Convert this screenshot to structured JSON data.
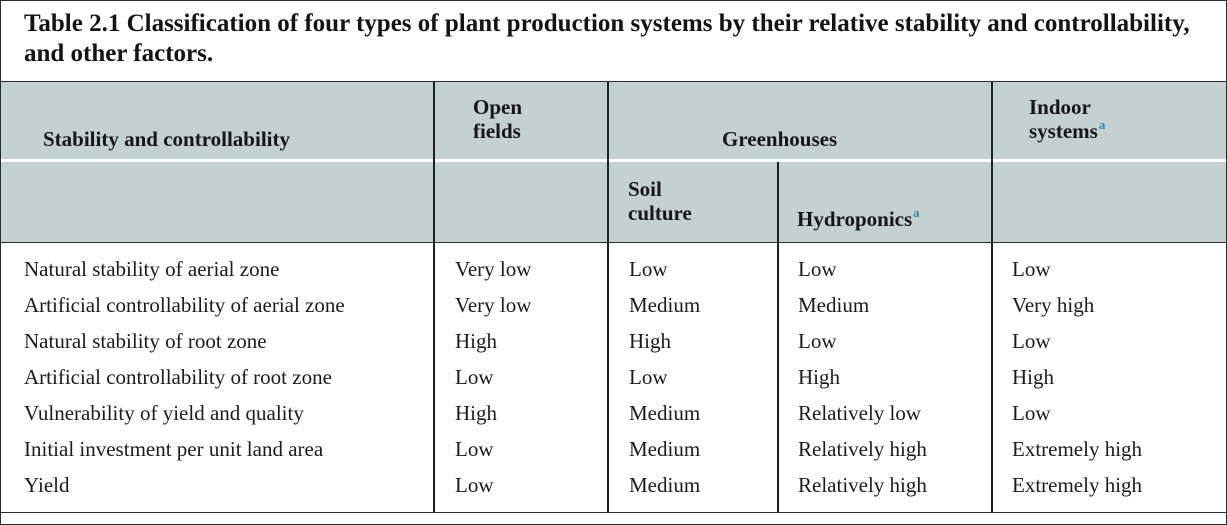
{
  "title": "Table 2.1  Classification of four types of plant production systems by their relative stability and controllability, and other factors.",
  "header": {
    "stability": "Stability and controllability",
    "open_line1": "Open",
    "open_line2": "fields",
    "greenhouses": "Greenhouses",
    "indoor_line1": "Indoor",
    "indoor_line2": "systems",
    "indoor_note": "a",
    "soil_line1": "Soil",
    "soil_line2": "culture",
    "hydro": "Hydroponics",
    "hydro_note": "a"
  },
  "rows": [
    [
      "Natural stability of aerial zone",
      "Very low",
      "Low",
      "Low",
      "Low"
    ],
    [
      "Artificial controllability of aerial zone",
      "Very low",
      "Medium",
      "Medium",
      "Very high"
    ],
    [
      "Natural stability of root zone",
      "High",
      "High",
      "Low",
      "Low"
    ],
    [
      "Artificial controllability of root zone",
      "Low",
      "Low",
      "High",
      "High"
    ],
    [
      "Vulnerability of yield and quality",
      "High",
      "Medium",
      "Relatively low",
      "Low"
    ],
    [
      "Initial investment per unit land area",
      "Low",
      "Medium",
      "Relatively high",
      "Extremely high"
    ],
    [
      "Yield",
      "Low",
      "Medium",
      "Relatively high",
      "Extremely high"
    ]
  ]
}
